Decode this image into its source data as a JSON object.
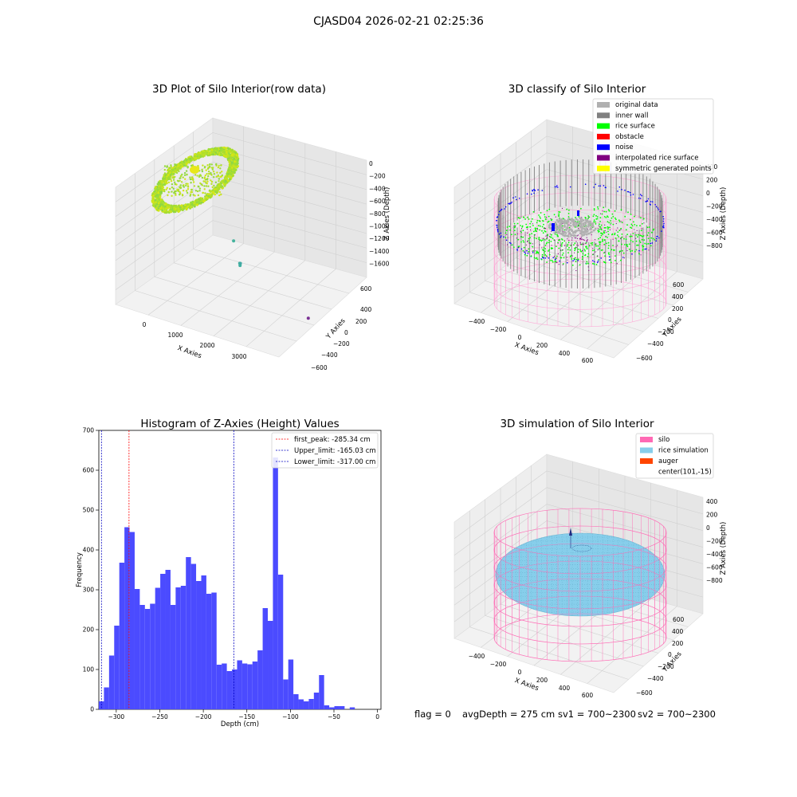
{
  "figure_title": "CJASD04 2026-02-21 02:25:36",
  "status_line": {
    "flag": "flag = 0",
    "avg_depth": "avgDepth = 275 cm",
    "sv1": "sv1 = 700~2300",
    "sv2": "sv2 = 700~2300"
  },
  "colors": {
    "original_data": "#b0b0b0",
    "inner_wall": "#808080",
    "rice_surface": "#00ff00",
    "obstacle": "#ff0000",
    "noise": "#0000ff",
    "interpolated": "#800080",
    "symmetric": "#ffff00",
    "silo": "#ff69b4",
    "rice_sim": "#87ceeb",
    "auger": "#ff4500",
    "hist_bar": "#4b4bff",
    "peak_line": "#ff0000",
    "limit_line": "#0000c0"
  },
  "chart_data": [
    {
      "type": "scatter",
      "panel": "raw",
      "title": "3D Plot of Silo Interior(row data)",
      "xlabel": "X Axies",
      "ylabel": "Y Axies",
      "zlabel": "Z Axies (Depth)",
      "x_ticks": [
        "0",
        "1000",
        "2000",
        "3000"
      ],
      "y_ticks": [
        "600",
        "400",
        "200",
        "0",
        "−200",
        "−400",
        "−600"
      ],
      "z_ticks": [
        "0",
        "−200",
        "−400",
        "−600",
        "−800",
        "−1000",
        "−1200",
        "−1400",
        "−1600"
      ],
      "outliers": [
        {
          "x": 1300,
          "y": 300,
          "z": -1150
        },
        {
          "x": 1500,
          "y": 250,
          "z": -1400
        },
        {
          "x": 1520,
          "y": 240,
          "z": -1420
        },
        {
          "x": 1540,
          "y": 230,
          "z": -1380
        },
        {
          "x": 3400,
          "y": -50,
          "z": -1600
        }
      ]
    },
    {
      "type": "scatter",
      "panel": "classify",
      "title": "3D classify of Silo Interior",
      "xlabel": "X Axies",
      "ylabel": "Y Axies",
      "zlabel": "Z Axies (Depth)",
      "x_ticks": [
        "−400",
        "−200",
        "0",
        "200",
        "400",
        "600"
      ],
      "y_ticks": [
        "600",
        "400",
        "200",
        "0",
        "−200",
        "−400",
        "−600"
      ],
      "z_ticks": [
        "400",
        "200",
        "0",
        "−200",
        "−400",
        "−600",
        "−800"
      ],
      "legend": [
        {
          "label": "original data",
          "color_key": "original_data"
        },
        {
          "label": "inner wall",
          "color_key": "inner_wall"
        },
        {
          "label": "rice surface",
          "color_key": "rice_surface"
        },
        {
          "label": "obstacle",
          "color_key": "obstacle"
        },
        {
          "label": "noise",
          "color_key": "noise"
        },
        {
          "label": "interpolated rice surface",
          "color_key": "interpolated"
        },
        {
          "label": "symmetric generated points",
          "color_key": "symmetric"
        }
      ]
    },
    {
      "type": "bar",
      "panel": "histogram",
      "title": "Histogram of Z-Axies (Height) Values",
      "xlabel": "Depth (cm)",
      "ylabel": "Frequency",
      "xlim": [
        -320,
        4
      ],
      "ylim": [
        0,
        700
      ],
      "x_ticks": [
        -300,
        -250,
        -200,
        -150,
        -100,
        -50,
        0
      ],
      "x_tick_labels": [
        "−300",
        "−250",
        "−200",
        "−150",
        "−100",
        "−50",
        "0"
      ],
      "y_ticks": [
        0,
        100,
        200,
        300,
        400,
        500,
        600,
        700
      ],
      "y_tick_labels": [
        "0",
        "100",
        "200",
        "300",
        "400",
        "500",
        "600",
        "700"
      ],
      "bin_start": -320,
      "bin_width": 5.88,
      "values": [
        20,
        55,
        135,
        210,
        368,
        457,
        445,
        302,
        262,
        252,
        265,
        305,
        340,
        350,
        262,
        306,
        310,
        382,
        365,
        322,
        336,
        290,
        293,
        112,
        115,
        96,
        100,
        123,
        115,
        113,
        120,
        148,
        254,
        222,
        632,
        338,
        75,
        125,
        38,
        25,
        20,
        26,
        42,
        86,
        10,
        5,
        8,
        8,
        0,
        5,
        0
      ],
      "lines": [
        {
          "x": -285.34,
          "label": "first_peak: -285.34 cm",
          "color_key": "peak_line"
        },
        {
          "x": -165.03,
          "label": "Upper_limit: -165.03 cm",
          "color_key": "limit_line"
        },
        {
          "x": -317.0,
          "label": "Lower_limit: -317.00 cm",
          "color_key": "limit_line"
        }
      ]
    },
    {
      "type": "scatter",
      "panel": "simulation",
      "title": "3D simulation of Silo Interior",
      "xlabel": "X Axies",
      "ylabel": "Y Axies",
      "zlabel": "Z Axies (Depth)",
      "x_ticks": [
        "−400",
        "−200",
        "0",
        "200",
        "400",
        "600"
      ],
      "y_ticks": [
        "600",
        "400",
        "200",
        "0",
        "−200",
        "−400",
        "−600"
      ],
      "z_ticks": [
        "400",
        "200",
        "0",
        "−200",
        "−400",
        "−600",
        "−800"
      ],
      "legend": [
        {
          "label": "silo",
          "color_key": "silo"
        },
        {
          "label": "rice simulation",
          "color_key": "rice_sim"
        },
        {
          "label": "auger",
          "color_key": "auger"
        },
        {
          "label": "center(101,-15)",
          "color_key": ""
        }
      ]
    }
  ]
}
